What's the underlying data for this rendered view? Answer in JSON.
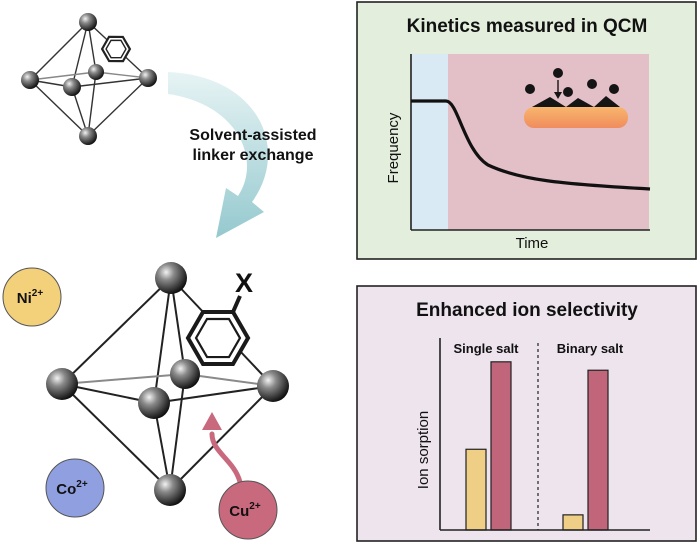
{
  "left": {
    "process_label_line1": "Solvent-assisted",
    "process_label_line2": "linker exchange",
    "substituent": "X",
    "ions": [
      {
        "name": "ni-ion",
        "element": "Ni",
        "charge": "2+",
        "color": "#f3d07a"
      },
      {
        "name": "co-ion",
        "element": "Co",
        "charge": "2+",
        "color": "#8f9fe0"
      },
      {
        "name": "cu-ion",
        "element": "Cu",
        "charge": "2+",
        "color": "#c8697e"
      }
    ]
  },
  "kinetics": {
    "title": "Kinetics measured in QCM",
    "ylabel": "Frequency",
    "xlabel": "Time",
    "panel_color": "#e3eedd",
    "baseline_color": "#d9eaf5",
    "response_color": "#e3bfc8"
  },
  "selectivity": {
    "title": "Enhanced ion selectivity",
    "ylabel": "Ion sorption",
    "panel_color": "#ede4ee",
    "chart_data": {
      "type": "bar",
      "groups": [
        "Single salt",
        "Binary salt"
      ],
      "series": [
        {
          "color": "#efcf86",
          "values": [
            0.48,
            0.09
          ]
        },
        {
          "color": "#c1657b",
          "values": [
            1.0,
            0.95
          ]
        }
      ],
      "ylim": [
        0,
        1.1
      ]
    }
  }
}
